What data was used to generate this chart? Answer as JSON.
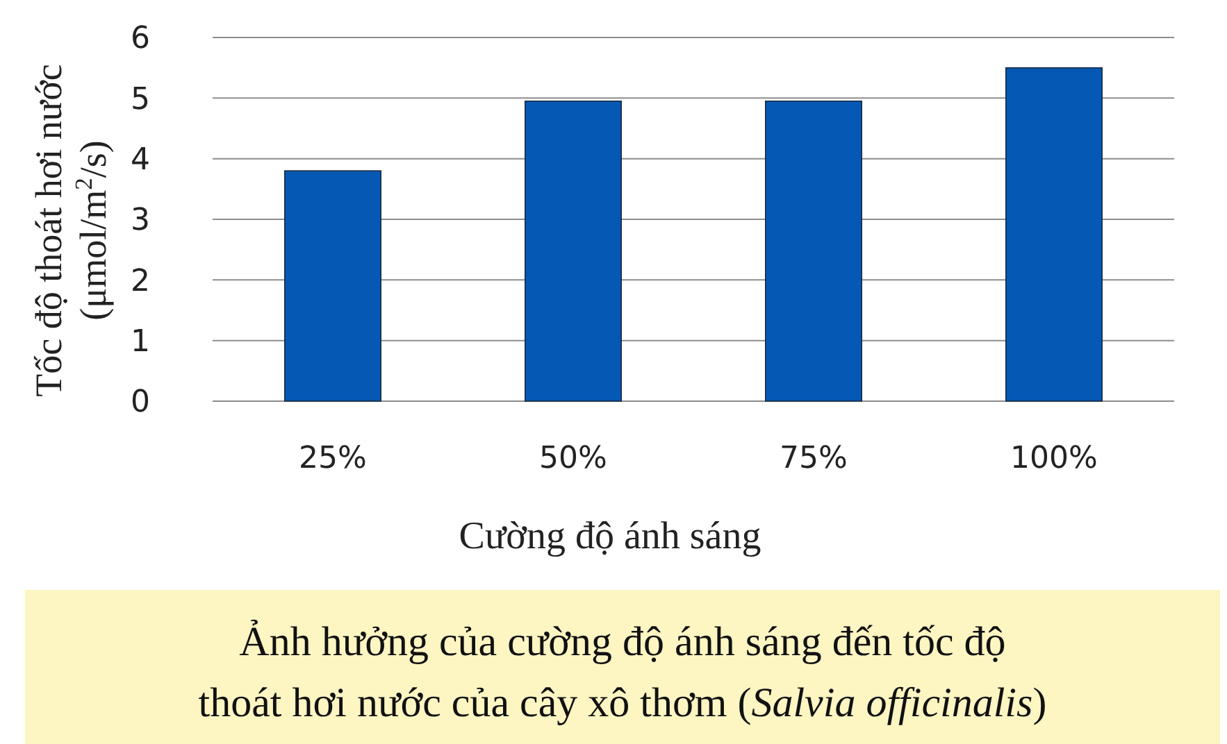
{
  "chart_data": {
    "type": "bar",
    "title": "Ảnh hưởng của cường độ ánh sáng đến tốc độ thoát hơi nước của cây xô thơm (Salvia officinalis)",
    "xlabel": "Cường độ ánh sáng",
    "ylabel": "Tốc độ thoát hơi nước (μmol/m$^{2}$/s)",
    "categories": [
      "25%",
      "50%",
      "75%",
      "100%"
    ],
    "values": [
      3.8,
      4.95,
      4.95,
      5.5
    ],
    "color": "#0559b5",
    "ylim": [
      0,
      6
    ],
    "yticks": [
      0,
      1,
      2,
      3,
      4,
      5,
      6
    ],
    "grid": "y"
  }
}
